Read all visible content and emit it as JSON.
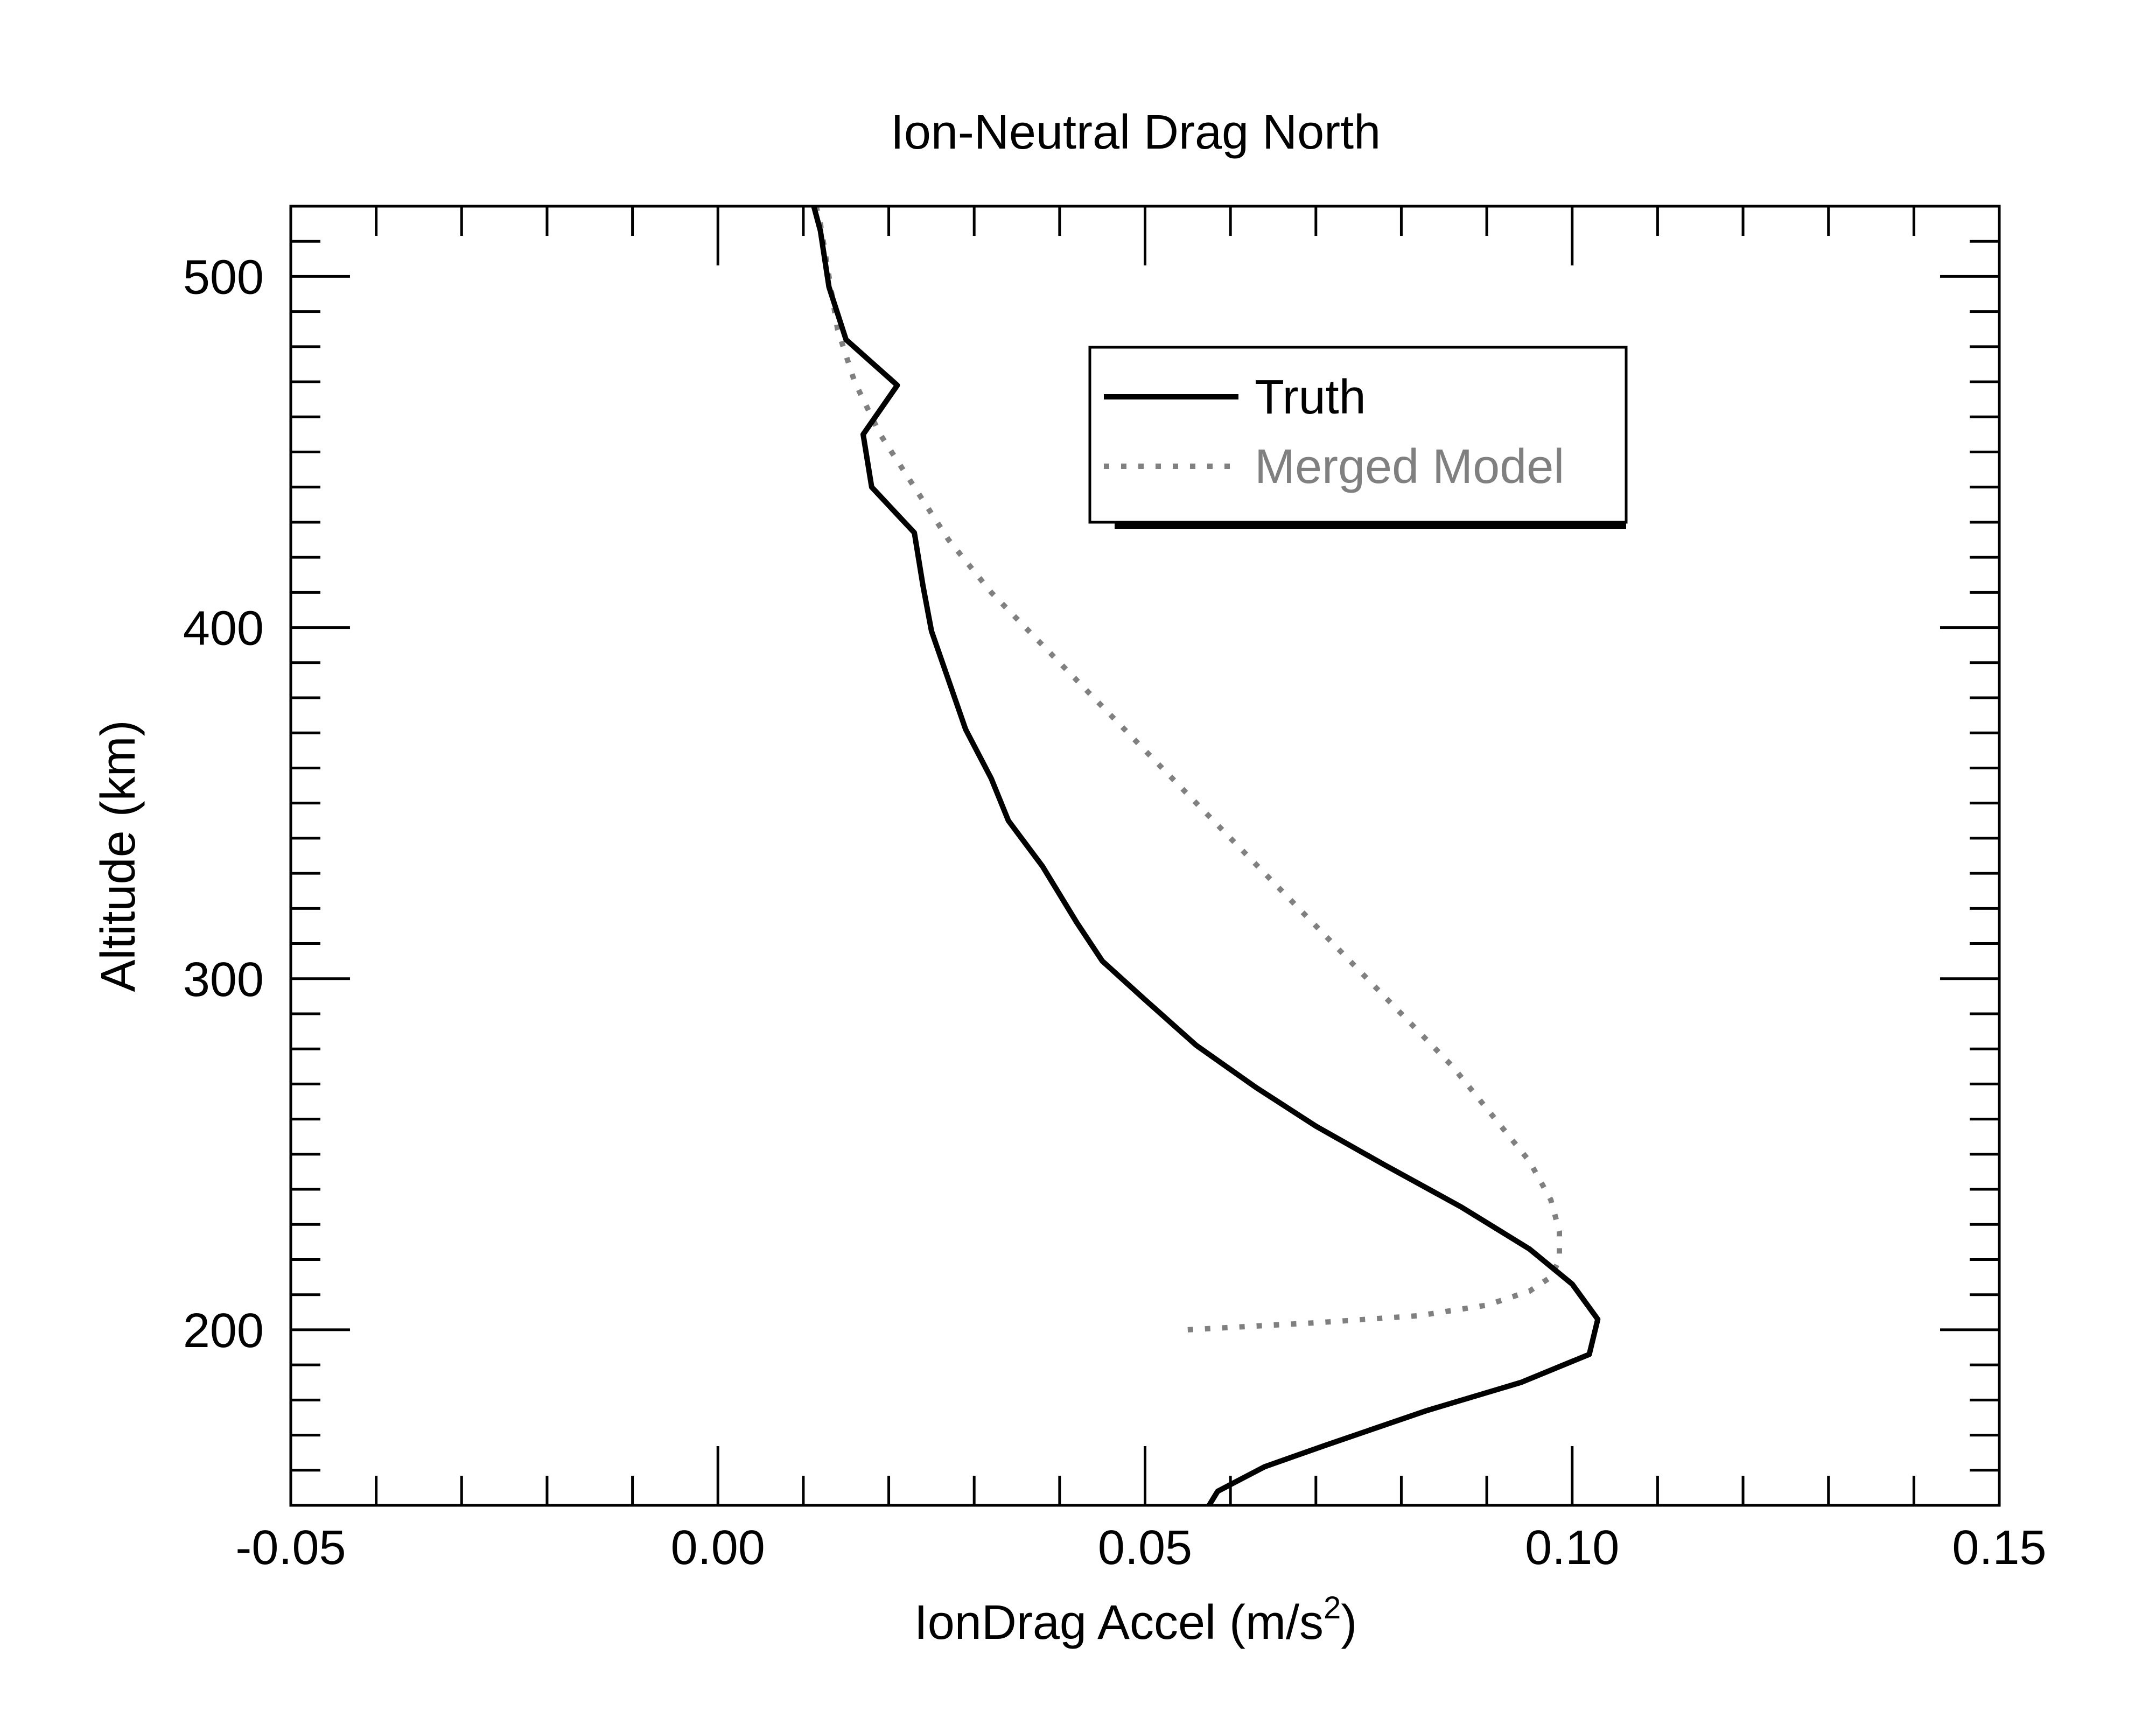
{
  "chart_data": {
    "type": "line",
    "title": "Ion-Neutral Drag North",
    "xlabel": "IonDrag Accel (m/s",
    "xlabel_sup": "2",
    "xlabel_suffix": ")",
    "ylabel": "Altitude (km)",
    "xlim": [
      -0.05,
      0.15
    ],
    "ylim": [
      150,
      520
    ],
    "x_major_ticks": [
      -0.05,
      0.0,
      0.05,
      0.1,
      0.15
    ],
    "x_tick_labels": [
      "-0.05",
      "0.00",
      "0.05",
      "0.10",
      "0.15"
    ],
    "x_minor_step": 0.01,
    "y_major_ticks": [
      200,
      300,
      400,
      500
    ],
    "y_tick_labels": [
      "200",
      "300",
      "400",
      "500"
    ],
    "y_minor_step": 10,
    "grid": false,
    "legend_position": "top-right",
    "series": [
      {
        "name": "Truth",
        "style": "solid",
        "color": "#000000",
        "points": [
          [
            0.0575,
            150
          ],
          [
            0.0585,
            154
          ],
          [
            0.064,
            161
          ],
          [
            0.071,
            167
          ],
          [
            0.083,
            177
          ],
          [
            0.094,
            185
          ],
          [
            0.102,
            193
          ],
          [
            0.103,
            203
          ],
          [
            0.1,
            213
          ],
          [
            0.095,
            223
          ],
          [
            0.087,
            235
          ],
          [
            0.078,
            247
          ],
          [
            0.07,
            258
          ],
          [
            0.063,
            269
          ],
          [
            0.056,
            281
          ],
          [
            0.05,
            294
          ],
          [
            0.045,
            305
          ],
          [
            0.042,
            316
          ],
          [
            0.038,
            332
          ],
          [
            0.034,
            345
          ],
          [
            0.032,
            357
          ],
          [
            0.029,
            371
          ],
          [
            0.027,
            385
          ],
          [
            0.025,
            399
          ],
          [
            0.024,
            412
          ],
          [
            0.023,
            427
          ],
          [
            0.018,
            440
          ],
          [
            0.017,
            455
          ],
          [
            0.021,
            469
          ],
          [
            0.015,
            482
          ],
          [
            0.013,
            497
          ],
          [
            0.012,
            513
          ],
          [
            0.011,
            522
          ]
        ]
      },
      {
        "name": "Merged Model",
        "style": "dotted",
        "color": "#808080",
        "points": [
          [
            0.055,
            200
          ],
          [
            0.07,
            202
          ],
          [
            0.082,
            204
          ],
          [
            0.09,
            207
          ],
          [
            0.095,
            211
          ],
          [
            0.0975,
            215
          ],
          [
            0.0985,
            220
          ],
          [
            0.0985,
            228
          ],
          [
            0.0975,
            237
          ],
          [
            0.095,
            248
          ],
          [
            0.091,
            260
          ],
          [
            0.086,
            275
          ],
          [
            0.08,
            290
          ],
          [
            0.074,
            305
          ],
          [
            0.068,
            320
          ],
          [
            0.062,
            335
          ],
          [
            0.056,
            350
          ],
          [
            0.05,
            365
          ],
          [
            0.044,
            380
          ],
          [
            0.038,
            395
          ],
          [
            0.032,
            410
          ],
          [
            0.027,
            425
          ],
          [
            0.023,
            440
          ],
          [
            0.019,
            455
          ],
          [
            0.016,
            470
          ],
          [
            0.014,
            485
          ],
          [
            0.013,
            500
          ],
          [
            0.012,
            515
          ],
          [
            0.0115,
            520
          ]
        ]
      }
    ]
  },
  "colors": {
    "axis": "#000000",
    "truth": "#000000",
    "model": "#808080",
    "background": "#ffffff"
  }
}
